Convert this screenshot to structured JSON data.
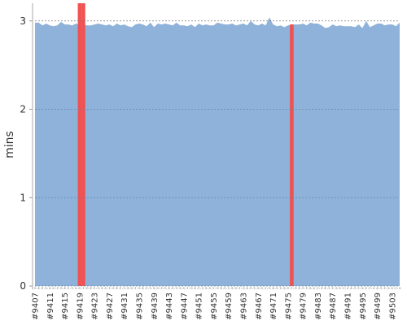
{
  "chart_data": {
    "type": "area",
    "y_label": "mins",
    "ylim": [
      0,
      3.2
    ],
    "yticks": [
      0,
      1,
      2,
      3
    ],
    "grid": true,
    "categories": [
      "#9407",
      null,
      null,
      null,
      "#9411",
      null,
      null,
      null,
      "#9415",
      null,
      null,
      null,
      "#9419",
      null,
      null,
      null,
      "#9423",
      null,
      null,
      null,
      "#9427",
      null,
      null,
      null,
      "#9431",
      null,
      null,
      null,
      "#9435",
      null,
      null,
      null,
      "#9439",
      null,
      null,
      null,
      "#9443",
      null,
      null,
      null,
      "#9447",
      null,
      null,
      null,
      "#9451",
      null,
      null,
      null,
      "#9455",
      null,
      null,
      null,
      "#9459",
      null,
      null,
      null,
      "#9463",
      null,
      null,
      null,
      "#9467",
      null,
      null,
      null,
      "#9471",
      null,
      null,
      null,
      "#9475",
      null,
      null,
      null,
      "#9479",
      null,
      null,
      null,
      "#9483",
      null,
      null,
      null,
      "#9487",
      null,
      null,
      null,
      "#9491",
      null,
      null,
      null,
      "#9495",
      null,
      null,
      null,
      "#9499",
      null,
      null,
      null,
      "#9503",
      null,
      null
    ],
    "series": [
      {
        "color": "#8fb2da",
        "values": [
          2.98,
          2.98,
          2.95,
          2.97,
          2.95,
          2.94,
          2.95,
          2.99,
          2.96,
          2.96,
          2.95,
          2.97,
          2.96,
          2.96,
          2.95,
          2.95,
          2.96,
          2.97,
          2.96,
          2.95,
          2.96,
          2.94,
          2.97,
          2.95,
          2.96,
          2.94,
          2.93,
          2.96,
          2.97,
          2.96,
          2.94,
          2.98,
          2.93,
          2.97,
          2.96,
          2.97,
          2.96,
          2.95,
          2.98,
          2.95,
          2.95,
          2.94,
          2.96,
          2.93,
          2.97,
          2.95,
          2.96,
          2.95,
          2.95,
          2.98,
          2.97,
          2.96,
          2.96,
          2.97,
          2.95,
          2.96,
          2.97,
          2.95,
          3.0,
          2.96,
          2.95,
          2.97,
          2.95,
          3.04,
          2.96,
          2.94,
          2.95,
          2.93,
          2.95,
          2.96,
          2.96,
          2.96,
          2.97,
          2.95,
          2.98,
          2.97,
          2.97,
          2.95,
          2.92,
          2.93,
          2.96,
          2.94,
          2.95,
          2.94,
          2.94,
          2.94,
          2.93,
          2.96,
          2.92,
          3.0,
          2.93,
          2.95,
          2.97,
          2.97,
          2.95,
          2.96,
          2.96,
          2.94,
          2.98
        ]
      },
      {
        "color": "#f05252",
        "values": [
          null,
          null,
          null,
          null,
          null,
          null,
          null,
          null,
          null,
          null,
          null,
          null,
          3.2,
          3.2,
          null,
          null,
          null,
          null,
          null,
          null,
          null,
          null,
          null,
          null,
          null,
          null,
          null,
          null,
          null,
          null,
          null,
          null,
          null,
          null,
          null,
          null,
          null,
          null,
          null,
          null,
          null,
          null,
          null,
          null,
          null,
          null,
          null,
          null,
          null,
          null,
          null,
          null,
          null,
          null,
          null,
          null,
          null,
          null,
          null,
          null,
          null,
          null,
          null,
          null,
          null,
          null,
          null,
          null,
          null,
          2.96,
          null,
          null,
          null,
          null,
          null,
          null,
          null,
          null,
          null,
          null,
          null,
          null,
          null,
          null,
          null,
          null,
          null,
          null,
          null,
          null,
          null,
          null,
          null,
          null,
          null,
          null,
          null,
          null,
          null
        ]
      }
    ]
  }
}
